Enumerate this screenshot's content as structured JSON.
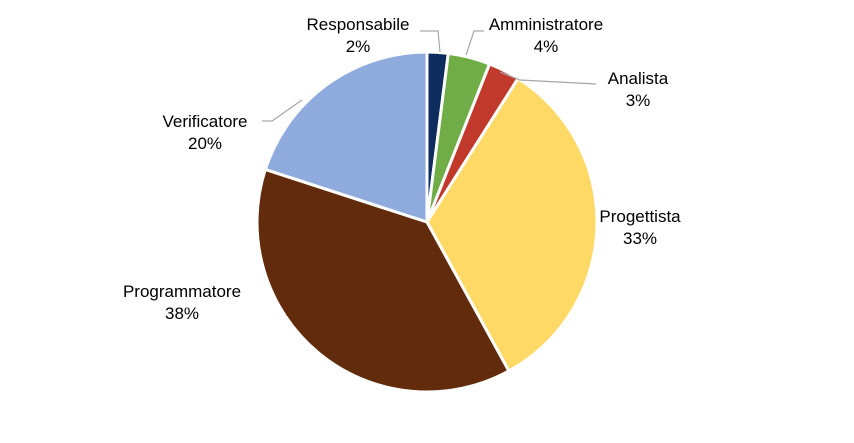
{
  "chart_data": {
    "type": "pie",
    "title": "",
    "start_angle_deg": 0,
    "direction": "clockwise",
    "slices": [
      {
        "name": "Responsabile",
        "value": 2,
        "label": "2%",
        "color": "#0e2c5e"
      },
      {
        "name": "Amministratore",
        "value": 4,
        "label": "4%",
        "color": "#70ad47"
      },
      {
        "name": "Analista",
        "value": 3,
        "label": "3%",
        "color": "#c0392b"
      },
      {
        "name": "Progettista",
        "value": 33,
        "label": "33%",
        "color": "#ffd966"
      },
      {
        "name": "Programmatore",
        "value": 38,
        "label": "38%",
        "color": "#622c0c"
      },
      {
        "name": "Verificatore",
        "value": 20,
        "label": "20%",
        "color": "#8faadc"
      }
    ],
    "legend": "none",
    "data_labels": "outside-with-leader-lines"
  }
}
